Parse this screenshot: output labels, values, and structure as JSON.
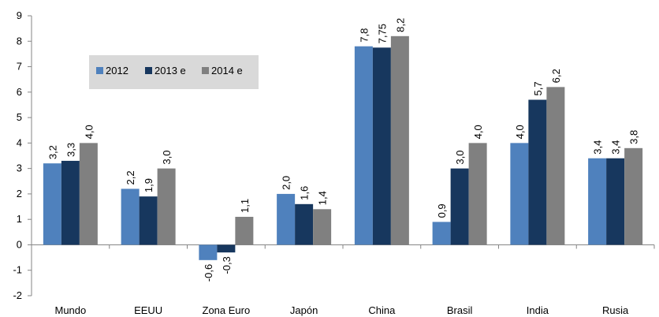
{
  "chart_data": {
    "type": "bar",
    "categories": [
      "Mundo",
      "EEUU",
      "Zona Euro",
      "Japón",
      "China",
      "Brasil",
      "India",
      "Rusia"
    ],
    "series": [
      {
        "name": "2012",
        "color": "#4f81bd",
        "values": [
          3.2,
          2.2,
          -0.6,
          2.0,
          7.8,
          0.9,
          4.0,
          3.4
        ],
        "value_labels": [
          "3,2",
          "2,2",
          "-0,6",
          "2,0",
          "7,8",
          "0,9",
          "4,0",
          "3,4"
        ]
      },
      {
        "name": "2013 e",
        "color": "#17375e",
        "values": [
          3.3,
          1.9,
          -0.3,
          1.6,
          7.75,
          3.0,
          5.7,
          3.4
        ],
        "value_labels": [
          "3,3",
          "1,9",
          "-0,3",
          "1,6",
          "7,75",
          "3,0",
          "5,7",
          "3,4"
        ]
      },
      {
        "name": "2014 e",
        "color": "#808080",
        "values": [
          4.0,
          3.0,
          1.1,
          1.4,
          8.2,
          4.0,
          6.2,
          3.8
        ],
        "value_labels": [
          "4,0",
          "3,0",
          "1,1",
          "1,4",
          "8,2",
          "4,0",
          "6,2",
          "3,8"
        ]
      }
    ],
    "ylim": [
      -2,
      9
    ],
    "yticks": [
      -2,
      -1,
      0,
      1,
      2,
      3,
      4,
      5,
      6,
      7,
      8,
      9
    ],
    "grid": false,
    "legend": "upper-left"
  }
}
